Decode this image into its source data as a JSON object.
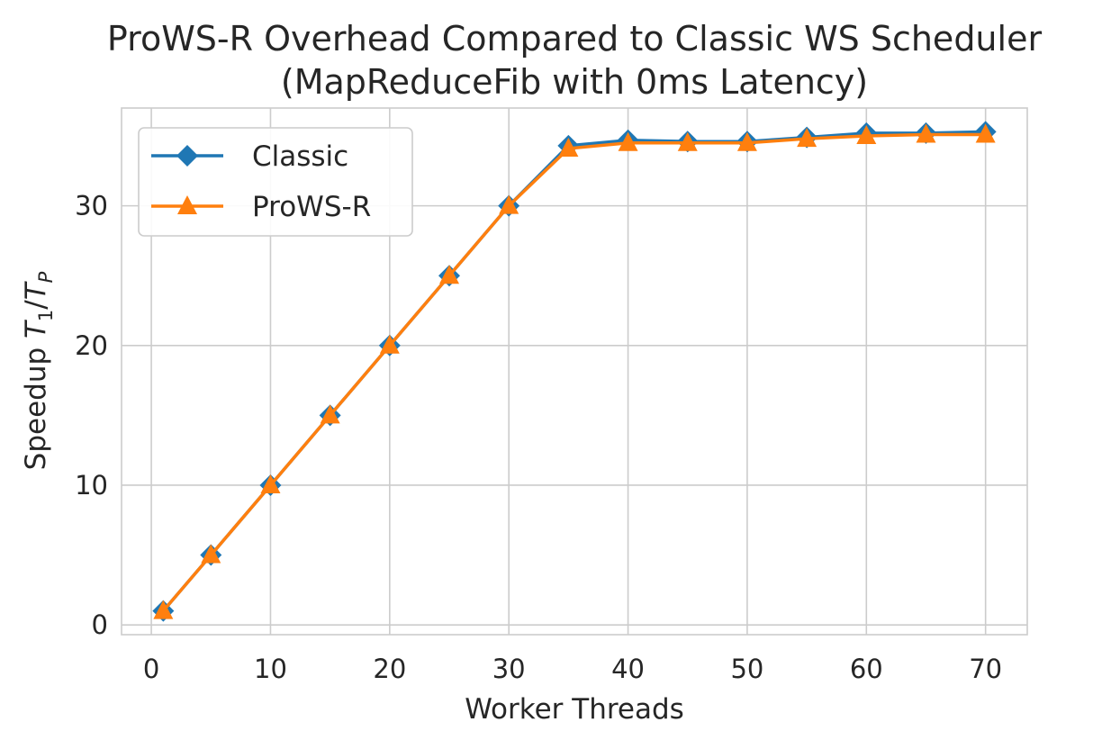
{
  "chart_data": {
    "type": "line",
    "title_line1": "ProWS-R Overhead Compared to Classic WS Scheduler",
    "title_line2": "(MapReduceFib with 0ms Latency)",
    "xlabel": "Worker Threads",
    "ylabel_prefix": "Speedup ",
    "ylabel_T": "T",
    "ylabel_sub1": "1",
    "ylabel_slash": "/",
    "ylabel_subP": "P",
    "xlim": [
      -2.5,
      73.5
    ],
    "ylim": [
      -0.7,
      37
    ],
    "xticks": [
      0,
      10,
      20,
      30,
      40,
      50,
      60,
      70
    ],
    "yticks": [
      0,
      10,
      20,
      30
    ],
    "grid": true,
    "legend_position": "upper-left",
    "x": [
      1,
      5,
      10,
      15,
      20,
      25,
      30,
      35,
      40,
      45,
      50,
      55,
      60,
      65,
      70
    ],
    "series": [
      {
        "name": "Classic",
        "color": "#1f77b4",
        "marker": "diamond",
        "values": [
          1.0,
          5.0,
          10.0,
          15.0,
          20.0,
          25.0,
          30.0,
          34.3,
          34.7,
          34.6,
          34.6,
          34.9,
          35.2,
          35.2,
          35.3
        ]
      },
      {
        "name": "ProWS-R",
        "color": "#ff7f0e",
        "marker": "triangle",
        "values": [
          1.0,
          5.0,
          10.0,
          15.0,
          20.0,
          25.0,
          30.0,
          34.1,
          34.5,
          34.5,
          34.5,
          34.8,
          35.0,
          35.1,
          35.1
        ]
      }
    ]
  }
}
